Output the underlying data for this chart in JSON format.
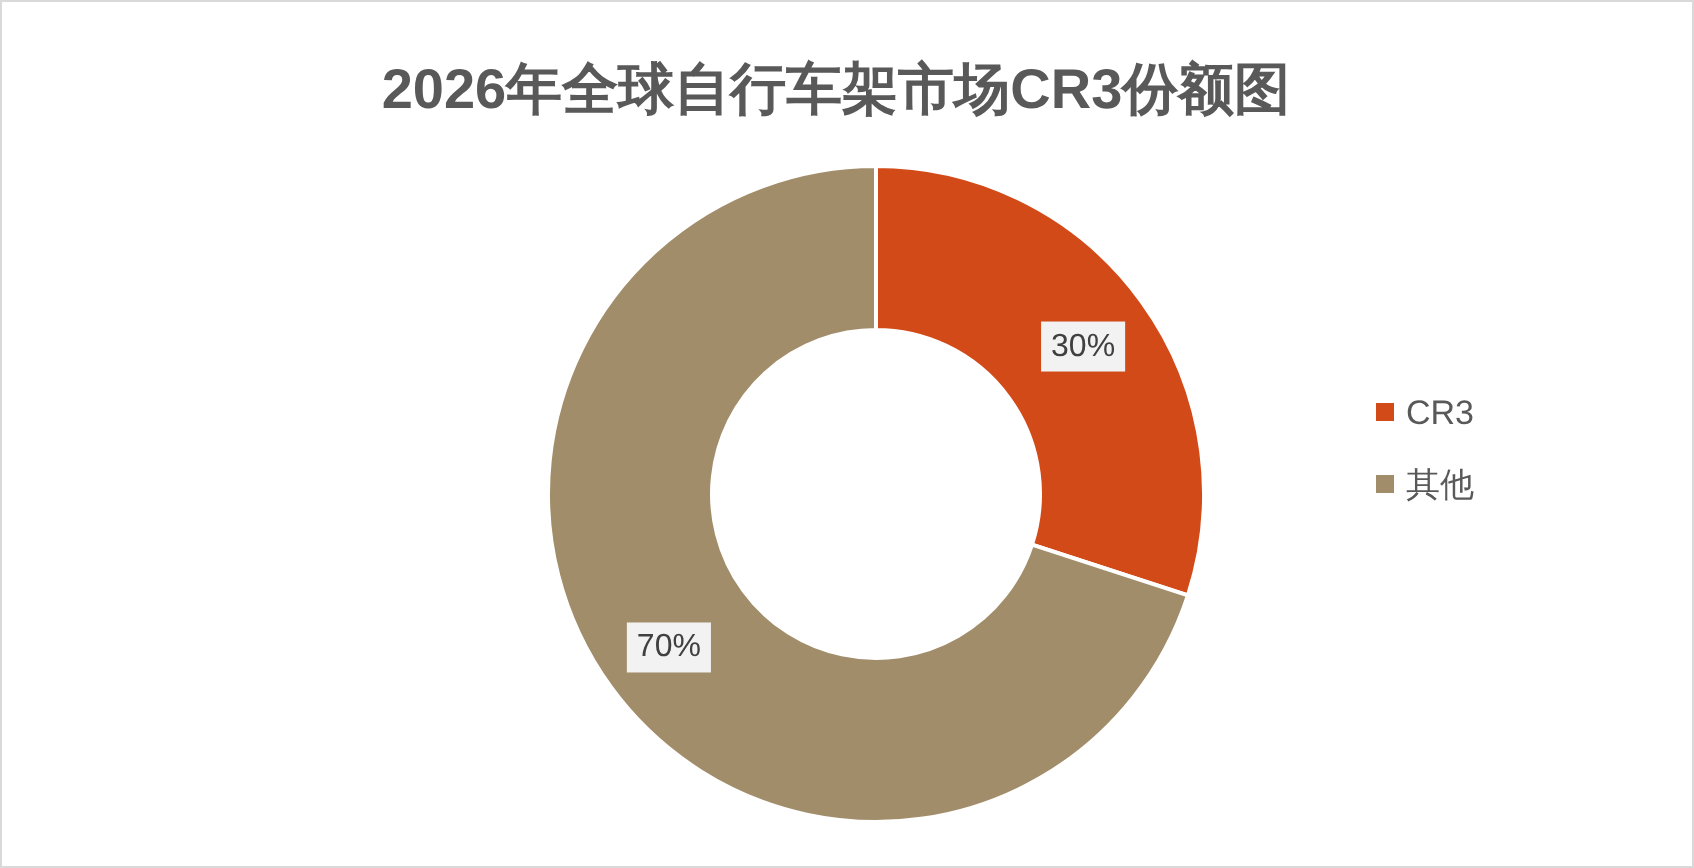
{
  "chart_data": {
    "type": "donut",
    "title": "2026年全球自行车架市场CR3份额图",
    "categories": [
      "CR3",
      "其他"
    ],
    "values": [
      30,
      70
    ],
    "colors": [
      "#d24a18",
      "#a28d6a"
    ],
    "value_labels": [
      "30%",
      "70%"
    ],
    "legend": "right"
  }
}
